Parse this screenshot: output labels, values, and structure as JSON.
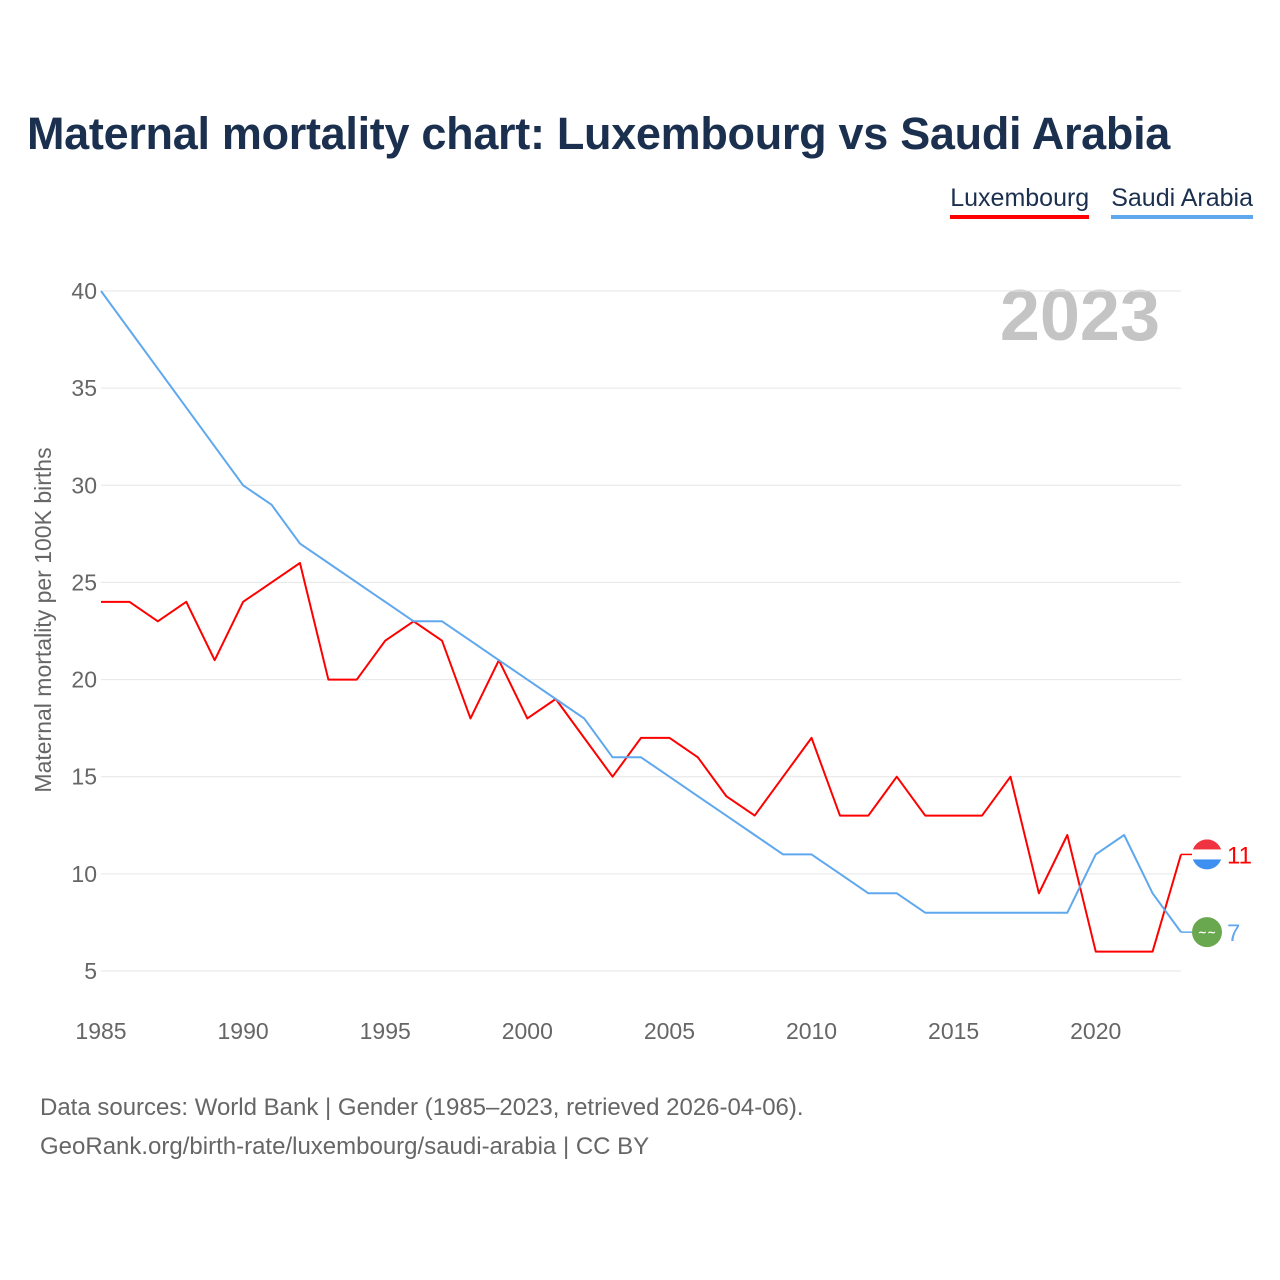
{
  "chart_data": {
    "type": "line",
    "title": "Maternal mortality chart: Luxembourg vs Saudi Arabia",
    "xlabel": "",
    "ylabel": "Maternal mortality per 100K births",
    "xlim": [
      1985,
      2023
    ],
    "ylim": [
      5,
      40
    ],
    "x_ticks": [
      1985,
      1990,
      1995,
      2000,
      2005,
      2010,
      2015,
      2020
    ],
    "y_ticks": [
      5,
      10,
      15,
      20,
      25,
      30,
      35,
      40
    ],
    "grid": true,
    "legend_position": "top-right",
    "year_watermark": "2023",
    "x": [
      1985,
      1986,
      1987,
      1988,
      1989,
      1990,
      1991,
      1992,
      1993,
      1994,
      1995,
      1996,
      1997,
      1998,
      1999,
      2000,
      2001,
      2002,
      2003,
      2004,
      2005,
      2006,
      2007,
      2008,
      2009,
      2010,
      2011,
      2012,
      2013,
      2014,
      2015,
      2016,
      2017,
      2018,
      2019,
      2020,
      2021,
      2022,
      2023
    ],
    "series": [
      {
        "name": "Luxembourg",
        "color": "#ff0000",
        "end_label": "11",
        "flag": "luxembourg-flag",
        "values": [
          24,
          24,
          23,
          24,
          21,
          24,
          25,
          26,
          20,
          20,
          22,
          23,
          22,
          18,
          21,
          18,
          19,
          17,
          15,
          17,
          17,
          16,
          14,
          13,
          15,
          17,
          13,
          13,
          15,
          13,
          13,
          13,
          15,
          9,
          12,
          6,
          6,
          6,
          11
        ]
      },
      {
        "name": "Saudi Arabia",
        "color": "#5fa8ee",
        "end_label": "7",
        "flag": "saudi-arabia-flag",
        "values": [
          40,
          38,
          36,
          34,
          32,
          30,
          29,
          27,
          26,
          25,
          24,
          23,
          23,
          22,
          21,
          20,
          19,
          18,
          16,
          16,
          15,
          14,
          13,
          12,
          11,
          11,
          10,
          9,
          9,
          8,
          8,
          8,
          8,
          8,
          8,
          11,
          12,
          9,
          7
        ]
      }
    ]
  },
  "footer": {
    "line1": "Data sources: World Bank | Gender (1985–2023, retrieved 2026-04-06).",
    "line2": "GeoRank.org/birth-rate/luxembourg/saudi-arabia | CC BY"
  }
}
